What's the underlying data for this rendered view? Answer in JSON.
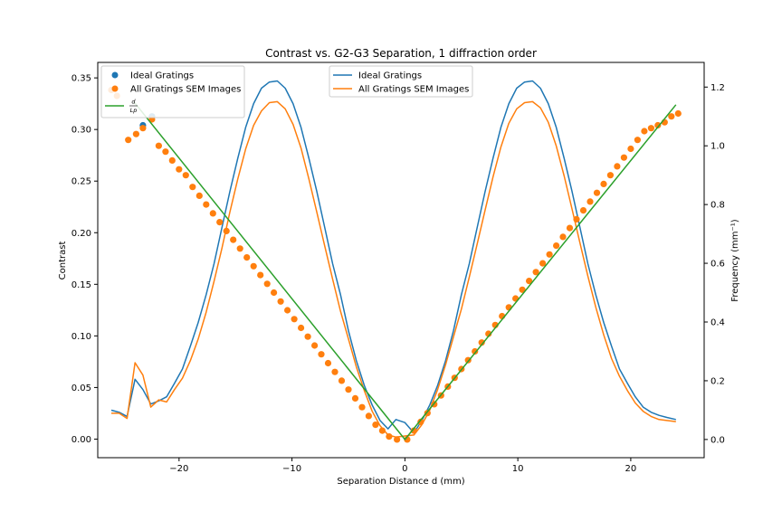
{
  "chart_data": {
    "type": "line",
    "title": "Contrast vs. G2-G3 Separation, 1 diffraction order",
    "xlabel": "Separation Distance d (mm)",
    "ylabel_left": "Contrast",
    "ylabel_right": "Frequency (mm⁻¹)",
    "xlim": [
      -27.2,
      26.5
    ],
    "ylim_left": [
      -0.018,
      0.365
    ],
    "ylim_right": [
      -0.062,
      1.284
    ],
    "x_ticks": [
      -20,
      -10,
      0,
      10,
      20
    ],
    "x_tick_labels": [
      "−20",
      "−10",
      "0",
      "10",
      "20"
    ],
    "y_left_ticks": [
      0.0,
      0.05,
      0.1,
      0.15,
      0.2,
      0.25,
      0.3,
      0.35
    ],
    "y_left_tick_labels": [
      "0.00",
      "0.05",
      "0.10",
      "0.15",
      "0.20",
      "0.25",
      "0.30",
      "0.35"
    ],
    "y_right_ticks": [
      0.0,
      0.2,
      0.4,
      0.6,
      0.8,
      1.0,
      1.2
    ],
    "y_right_tick_labels": [
      "0.0",
      "0.2",
      "0.4",
      "0.6",
      "0.8",
      "1.0",
      "1.2"
    ],
    "grid": false,
    "legend_left": {
      "placement": "upper-left",
      "entries": [
        {
          "label": "Ideal Gratings",
          "marker": "dot",
          "color": "#1f77b4"
        },
        {
          "label": "All Gratings SEM Images",
          "marker": "dot",
          "color": "#ff7f0e"
        },
        {
          "label": "d / (L p)",
          "marker": "line",
          "color": "#2ca02c"
        }
      ]
    },
    "legend_center": {
      "placement": "upper-center",
      "entries": [
        {
          "label": "Ideal Gratings",
          "marker": "line",
          "color": "#1f77b4"
        },
        {
          "label": "All Gratings SEM Images",
          "marker": "line",
          "color": "#ff7f0e"
        }
      ]
    },
    "series": [
      {
        "name": "Ideal Gratings",
        "axis": "left",
        "style": "line",
        "color": "#1f77b4",
        "x": [
          -26.0,
          -25.3,
          -24.6,
          -23.9,
          -23.2,
          -22.5,
          -21.8,
          -21.1,
          -20.4,
          -19.7,
          -19.0,
          -18.3,
          -17.6,
          -16.9,
          -16.2,
          -15.5,
          -14.8,
          -14.1,
          -13.4,
          -12.7,
          -12.0,
          -11.3,
          -10.6,
          -9.9,
          -9.2,
          -8.5,
          -7.8,
          -7.1,
          -6.4,
          -5.7,
          -5.0,
          -4.3,
          -3.6,
          -2.9,
          -2.2,
          -1.5,
          -0.8,
          0.0,
          0.8,
          1.5,
          2.2,
          2.9,
          3.6,
          4.3,
          5.0,
          5.7,
          6.4,
          7.1,
          7.8,
          8.5,
          9.2,
          9.9,
          10.6,
          11.3,
          12.0,
          12.7,
          13.4,
          14.1,
          14.8,
          15.5,
          16.2,
          16.9,
          17.6,
          18.3,
          19.0,
          19.7,
          20.4,
          21.1,
          21.8,
          22.5,
          23.2,
          24.0
        ],
        "y": [
          0.028,
          0.026,
          0.022,
          0.058,
          0.048,
          0.034,
          0.037,
          0.041,
          0.054,
          0.068,
          0.09,
          0.113,
          0.14,
          0.17,
          0.205,
          0.24,
          0.272,
          0.302,
          0.325,
          0.34,
          0.346,
          0.347,
          0.34,
          0.325,
          0.302,
          0.272,
          0.24,
          0.205,
          0.17,
          0.14,
          0.105,
          0.076,
          0.052,
          0.033,
          0.018,
          0.01,
          0.019,
          0.016,
          0.006,
          0.018,
          0.033,
          0.052,
          0.076,
          0.105,
          0.14,
          0.17,
          0.205,
          0.24,
          0.272,
          0.302,
          0.325,
          0.34,
          0.346,
          0.347,
          0.34,
          0.325,
          0.302,
          0.272,
          0.24,
          0.205,
          0.17,
          0.14,
          0.113,
          0.09,
          0.068,
          0.054,
          0.041,
          0.031,
          0.026,
          0.023,
          0.021,
          0.019
        ]
      },
      {
        "name": "All Gratings SEM Images",
        "axis": "left",
        "style": "line",
        "color": "#ff7f0e",
        "x": [
          -26.0,
          -25.3,
          -24.6,
          -23.9,
          -23.2,
          -22.5,
          -21.8,
          -21.1,
          -20.4,
          -19.7,
          -19.0,
          -18.3,
          -17.6,
          -16.9,
          -16.2,
          -15.5,
          -14.8,
          -14.1,
          -13.4,
          -12.7,
          -12.0,
          -11.3,
          -10.6,
          -9.9,
          -9.2,
          -8.5,
          -7.8,
          -7.1,
          -6.4,
          -5.7,
          -5.0,
          -4.3,
          -3.6,
          -2.9,
          -2.2,
          -1.5,
          -0.8,
          0.0,
          0.8,
          1.5,
          2.2,
          2.9,
          3.6,
          4.3,
          5.0,
          5.7,
          6.4,
          7.1,
          7.8,
          8.5,
          9.2,
          9.9,
          10.6,
          11.3,
          12.0,
          12.7,
          13.4,
          14.1,
          14.8,
          15.5,
          16.2,
          16.9,
          17.6,
          18.3,
          19.0,
          19.7,
          20.4,
          21.1,
          21.8,
          22.5,
          23.2,
          24.0
        ],
        "y": [
          0.025,
          0.025,
          0.02,
          0.074,
          0.062,
          0.031,
          0.038,
          0.036,
          0.048,
          0.059,
          0.076,
          0.097,
          0.123,
          0.153,
          0.185,
          0.22,
          0.252,
          0.281,
          0.304,
          0.318,
          0.326,
          0.327,
          0.32,
          0.305,
          0.282,
          0.252,
          0.22,
          0.187,
          0.155,
          0.124,
          0.097,
          0.07,
          0.047,
          0.027,
          0.013,
          0.004,
          0.002,
          0.003,
          0.004,
          0.014,
          0.028,
          0.048,
          0.072,
          0.099,
          0.126,
          0.157,
          0.189,
          0.222,
          0.254,
          0.283,
          0.306,
          0.32,
          0.326,
          0.327,
          0.321,
          0.307,
          0.284,
          0.255,
          0.223,
          0.19,
          0.158,
          0.128,
          0.101,
          0.078,
          0.061,
          0.047,
          0.035,
          0.027,
          0.022,
          0.019,
          0.018,
          0.017
        ]
      },
      {
        "name": "Ideal Gratings",
        "axis": "right",
        "style": "scatter",
        "color": "#1f77b4",
        "x": [
          -23.2,
          -22.4
        ],
        "y": [
          1.07,
          1.1
        ]
      },
      {
        "name": "All Gratings SEM Images",
        "axis": "right",
        "style": "scatter",
        "color": "#ff7f0e",
        "x": [
          -26.0,
          -25.5,
          -24.5,
          -23.8,
          -23.2,
          -22.4,
          -21.8,
          -21.2,
          -20.6,
          -20.0,
          -19.4,
          -18.8,
          -18.2,
          -17.6,
          -17.0,
          -16.4,
          -15.8,
          -15.2,
          -14.6,
          -14.0,
          -13.4,
          -12.8,
          -12.2,
          -11.6,
          -11.0,
          -10.4,
          -9.8,
          -9.2,
          -8.6,
          -8.0,
          -7.4,
          -6.8,
          -6.2,
          -5.6,
          -5.0,
          -4.4,
          -3.8,
          -3.2,
          -2.6,
          -2.0,
          -1.4,
          -0.7,
          0.2,
          0.8,
          1.4,
          2.0,
          2.6,
          3.2,
          3.8,
          4.4,
          5.0,
          5.6,
          6.2,
          6.8,
          7.4,
          8.0,
          8.6,
          9.2,
          9.8,
          10.4,
          11.0,
          11.6,
          12.2,
          12.8,
          13.4,
          14.0,
          14.6,
          15.2,
          15.8,
          16.4,
          17.0,
          17.6,
          18.2,
          18.8,
          19.4,
          20.0,
          20.6,
          21.2,
          21.8,
          22.4,
          23.0,
          23.6,
          24.2
        ],
        "y": [
          1.19,
          1.17,
          1.02,
          1.04,
          1.06,
          1.09,
          1.0,
          0.98,
          0.95,
          0.92,
          0.9,
          0.86,
          0.83,
          0.8,
          0.77,
          0.74,
          0.71,
          0.68,
          0.65,
          0.62,
          0.59,
          0.56,
          0.53,
          0.5,
          0.47,
          0.44,
          0.41,
          0.38,
          0.35,
          0.32,
          0.29,
          0.26,
          0.23,
          0.2,
          0.17,
          0.14,
          0.11,
          0.08,
          0.05,
          0.03,
          0.01,
          0.0,
          0.0,
          0.03,
          0.06,
          0.09,
          0.12,
          0.15,
          0.18,
          0.21,
          0.24,
          0.27,
          0.3,
          0.33,
          0.36,
          0.39,
          0.42,
          0.45,
          0.48,
          0.51,
          0.54,
          0.57,
          0.6,
          0.63,
          0.66,
          0.69,
          0.72,
          0.75,
          0.78,
          0.81,
          0.84,
          0.87,
          0.9,
          0.93,
          0.96,
          0.99,
          1.02,
          1.05,
          1.06,
          1.07,
          1.08,
          1.1,
          1.11
        ]
      },
      {
        "name": "d / (L p)",
        "axis": "right",
        "style": "line",
        "color": "#2ca02c",
        "x": [
          -24.0,
          0.0,
          24.0
        ],
        "y": [
          1.15,
          0.0,
          1.14
        ]
      }
    ]
  }
}
